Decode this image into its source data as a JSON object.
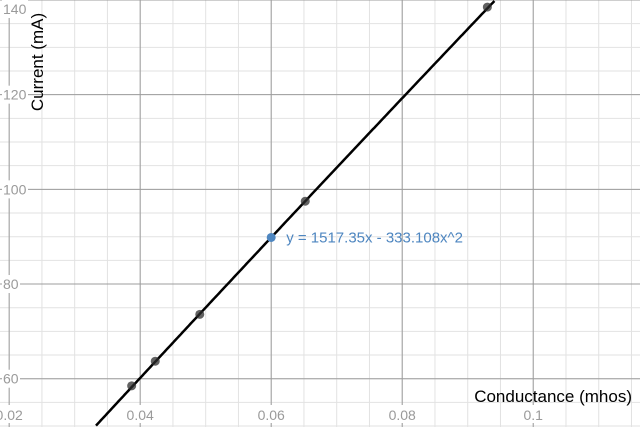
{
  "chart_data": {
    "type": "scatter",
    "xlabel": "Conductance (mhos)",
    "ylabel": "Current (mA)",
    "xlim": [
      0.0186,
      0.1163
    ],
    "ylim": [
      49.8,
      140.0
    ],
    "grid": true,
    "x_ticks": [
      0.02,
      0.04,
      0.06,
      0.08,
      0.1
    ],
    "x_tick_labels": [
      "0.02",
      "0.04",
      "0.06",
      "0.08",
      "0.1"
    ],
    "y_ticks": [
      60,
      80,
      100,
      120,
      140
    ],
    "y_tick_labels": [
      "60",
      "80",
      "100",
      "120",
      "140"
    ],
    "series": [
      {
        "color": "#2d2d2d",
        "points": [
          {
            "x": 0.0387,
            "y": 58.5
          },
          {
            "x": 0.0423,
            "y": 63.7
          },
          {
            "x": 0.0491,
            "y": 73.6
          },
          {
            "x": 0.0652,
            "y": 97.5
          },
          {
            "x": 0.093,
            "y": 138.5
          }
        ]
      }
    ],
    "fit": {
      "equation": "y = 1517.35x - 333.108x^2",
      "a": 1517.35,
      "b": -333.108,
      "color": "#000000"
    },
    "annotation": {
      "text": "y = 1517.35x - 333.108x^2",
      "x": 0.06,
      "y": 89.84,
      "color": "#4e86c0"
    }
  }
}
